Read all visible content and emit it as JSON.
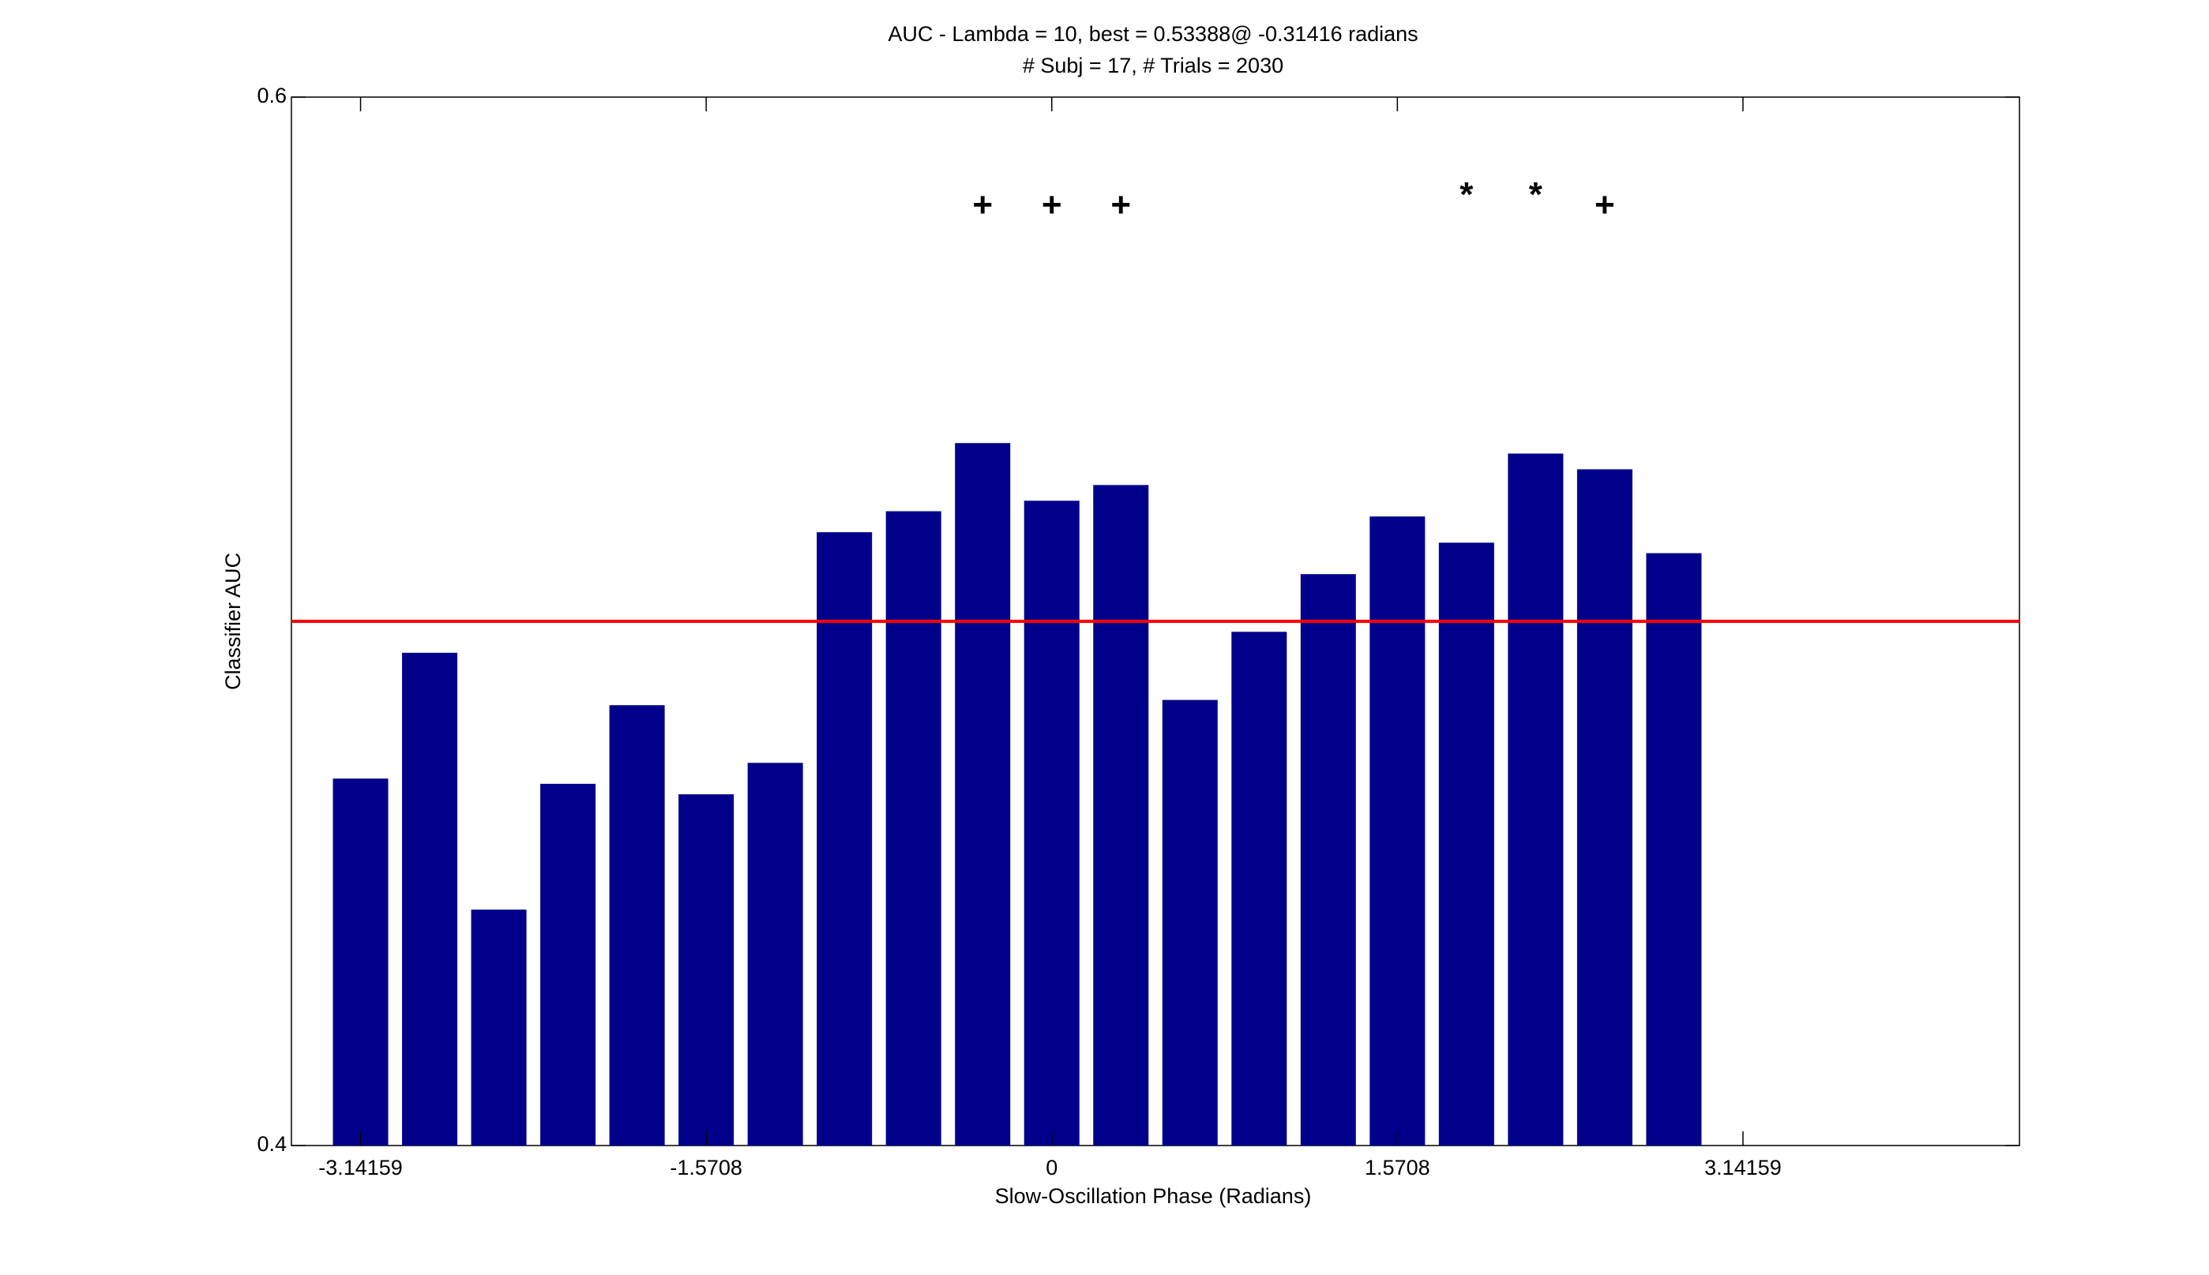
{
  "chart_data": {
    "type": "bar",
    "title": "AUC - Lambda = 10, best = 0.53388@ -0.31416 radians",
    "subtitle": "# Subj = 17, # Trials = 2030",
    "xlabel": "Slow-Oscillation Phase (Radians)",
    "ylabel": "Classifier AUC",
    "x": [
      -3.14159,
      -2.82743,
      -2.51327,
      -2.19911,
      -1.88496,
      -1.5708,
      -1.25664,
      -0.94248,
      -0.62832,
      -0.31416,
      0,
      0.31416,
      0.62832,
      0.94248,
      1.25664,
      1.5708,
      1.88496,
      2.19911,
      2.51327,
      2.82743
    ],
    "values": [
      0.47,
      0.494,
      0.445,
      0.469,
      0.484,
      0.467,
      0.473,
      0.517,
      0.521,
      0.534,
      0.523,
      0.526,
      0.485,
      0.498,
      0.509,
      0.52,
      0.515,
      0.532,
      0.529,
      0.513
    ],
    "color": "#00008b",
    "bar_width": 0.8,
    "xlim": [
      -3.4558,
      4.3982
    ],
    "xticks": [
      -3.14159,
      -1.5708,
      0,
      1.5708,
      3.14159
    ],
    "ylim": [
      0.4,
      0.6
    ],
    "yticks": [
      0.4,
      0.6
    ],
    "reference_line": {
      "y": 0.5,
      "color": "#ff0000"
    },
    "annotations": [
      {
        "x": -0.31416,
        "y": 0.579,
        "text": "+"
      },
      {
        "x": 0,
        "y": 0.579,
        "text": "+"
      },
      {
        "x": 0.31416,
        "y": 0.579,
        "text": "+"
      },
      {
        "x": 1.88496,
        "y": 0.581,
        "text": "*"
      },
      {
        "x": 2.19911,
        "y": 0.581,
        "text": "*"
      },
      {
        "x": 2.51327,
        "y": 0.579,
        "text": "+"
      }
    ]
  }
}
